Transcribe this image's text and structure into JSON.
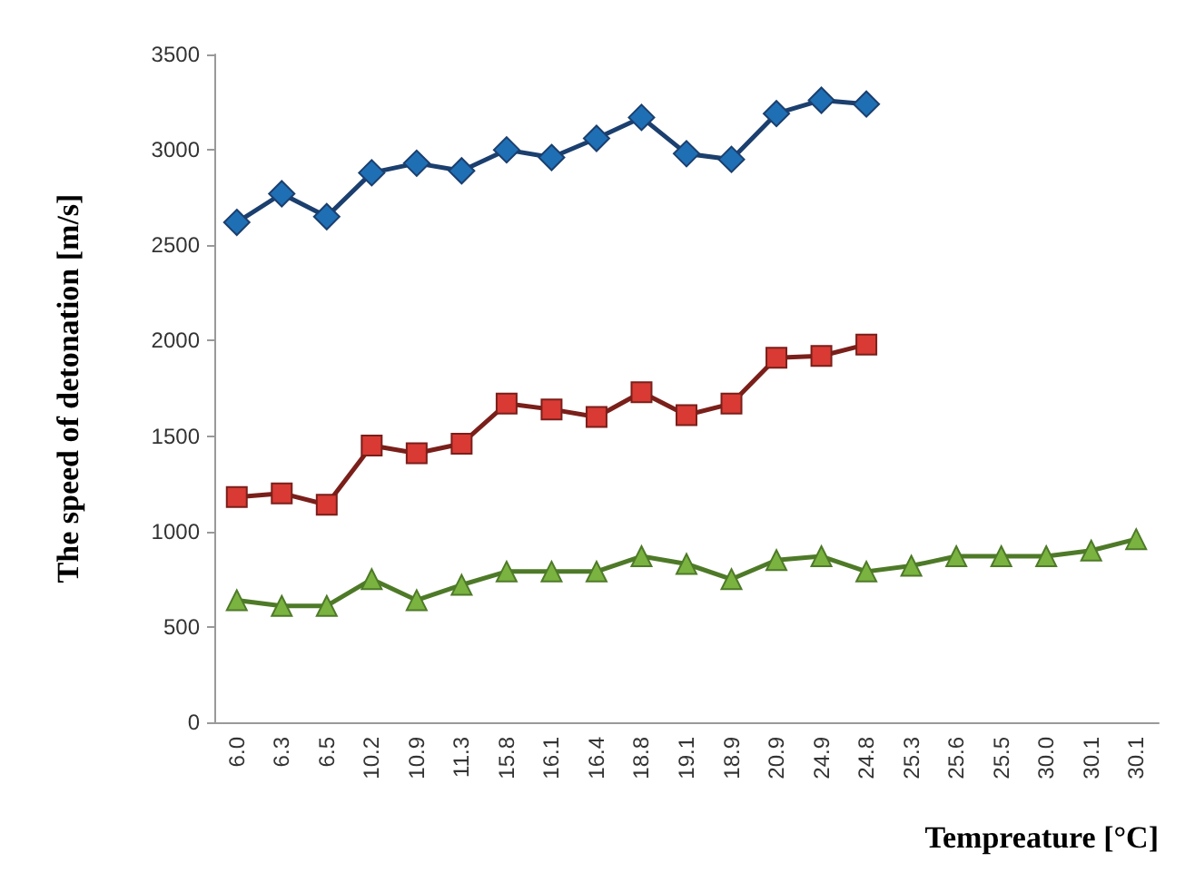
{
  "chart_data": {
    "type": "line",
    "xlabel": "Tempreature [°C]",
    "ylabel": "The speed of detonation [m/s]",
    "categories": [
      "6.0",
      "6.3",
      "6.5",
      "10.2",
      "10.9",
      "11.3",
      "15.8",
      "16.1",
      "16.4",
      "18.8",
      "19.1",
      "18.9",
      "20.9",
      "24.9",
      "24.8",
      "25.3",
      "25.6",
      "25.5",
      "30.0",
      "30.1",
      "30.1"
    ],
    "ylim": [
      0,
      3500
    ],
    "yticks": [
      0,
      500,
      1000,
      1500,
      2000,
      2500,
      3000,
      3500
    ],
    "grid": false,
    "series": [
      {
        "color": "#1f6fb5",
        "marker": "diamond",
        "values": [
          2620,
          2770,
          2650,
          2880,
          2930,
          2890,
          3000,
          2960,
          3060,
          3170,
          2980,
          2950,
          3190,
          3260,
          3240,
          null,
          null,
          null,
          null,
          null,
          null
        ]
      },
      {
        "color": "#d93a34",
        "marker": "square",
        "values": [
          1180,
          1200,
          1140,
          1450,
          1410,
          1460,
          1670,
          1640,
          1600,
          1730,
          1610,
          1670,
          1910,
          1920,
          1980,
          null,
          null,
          null,
          null,
          null,
          null
        ]
      },
      {
        "color": "#7ab340",
        "marker": "triangle",
        "values": [
          640,
          610,
          610,
          750,
          640,
          720,
          790,
          790,
          790,
          870,
          830,
          750,
          850,
          870,
          790,
          820,
          870,
          870,
          870,
          900,
          960
        ]
      }
    ]
  }
}
